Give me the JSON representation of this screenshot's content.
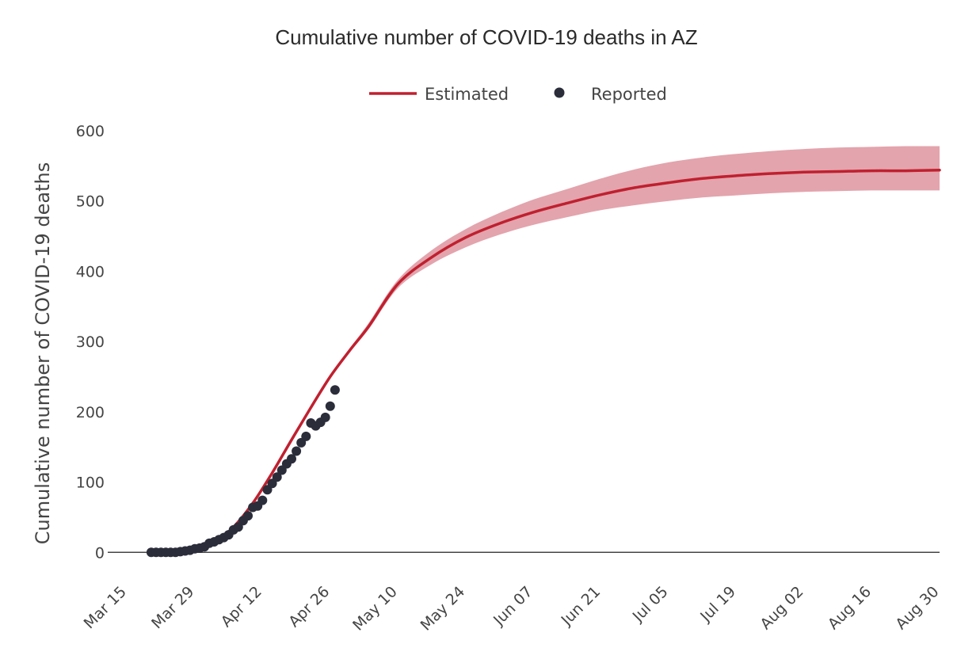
{
  "chart_data": {
    "type": "line",
    "title": "Cumulative number of COVID-19 deaths in AZ",
    "ylabel": "Cumulative number of COVID-19 deaths",
    "xlabel": "",
    "xlim": [
      "2020-03-11",
      "2020-08-30"
    ],
    "ylim": [
      -20,
      600
    ],
    "y_ticks": [
      0,
      100,
      200,
      300,
      400,
      500,
      600
    ],
    "x_ticks": [
      {
        "date": "2020-03-15",
        "label": "Mar 15"
      },
      {
        "date": "2020-03-29",
        "label": "Mar 29"
      },
      {
        "date": "2020-04-12",
        "label": "Apr 12"
      },
      {
        "date": "2020-04-26",
        "label": "Apr 26"
      },
      {
        "date": "2020-05-10",
        "label": "May 10"
      },
      {
        "date": "2020-05-24",
        "label": "May 24"
      },
      {
        "date": "2020-06-07",
        "label": "Jun 07"
      },
      {
        "date": "2020-06-21",
        "label": "Jun 21"
      },
      {
        "date": "2020-07-05",
        "label": "Jul 05"
      },
      {
        "date": "2020-07-19",
        "label": "Jul 19"
      },
      {
        "date": "2020-08-02",
        "label": "Aug 02"
      },
      {
        "date": "2020-08-16",
        "label": "Aug 16"
      },
      {
        "date": "2020-08-30",
        "label": "Aug 30"
      }
    ],
    "grid": false,
    "legend": {
      "placement": "top-center",
      "orientation": "horizontal"
    },
    "series": [
      {
        "name": "Estimated",
        "kind": "line",
        "color": "#c0202f",
        "band_color": "#e3a4ad",
        "points": [
          {
            "date": "2020-03-20",
            "y": 0,
            "lo": 0,
            "hi": 0
          },
          {
            "date": "2020-03-25",
            "y": 1,
            "lo": 1,
            "hi": 1
          },
          {
            "date": "2020-03-29",
            "y": 4,
            "lo": 4,
            "hi": 4
          },
          {
            "date": "2020-04-02",
            "y": 14,
            "lo": 14,
            "hi": 14
          },
          {
            "date": "2020-04-06",
            "y": 36,
            "lo": 36,
            "hi": 36
          },
          {
            "date": "2020-04-10",
            "y": 70,
            "lo": 70,
            "hi": 70
          },
          {
            "date": "2020-04-14",
            "y": 113,
            "lo": 113,
            "hi": 113
          },
          {
            "date": "2020-04-18",
            "y": 160,
            "lo": 160,
            "hi": 160
          },
          {
            "date": "2020-04-22",
            "y": 206,
            "lo": 206,
            "hi": 206
          },
          {
            "date": "2020-04-26",
            "y": 250,
            "lo": 250,
            "hi": 252
          },
          {
            "date": "2020-04-30",
            "y": 287,
            "lo": 285,
            "hi": 290
          },
          {
            "date": "2020-05-04",
            "y": 322,
            "lo": 318,
            "hi": 327
          },
          {
            "date": "2020-05-10",
            "y": 382,
            "lo": 376,
            "hi": 388
          },
          {
            "date": "2020-05-17",
            "y": 420,
            "lo": 410,
            "hi": 430
          },
          {
            "date": "2020-05-24",
            "y": 448,
            "lo": 434,
            "hi": 460
          },
          {
            "date": "2020-05-31",
            "y": 468,
            "lo": 452,
            "hi": 483
          },
          {
            "date": "2020-06-07",
            "y": 484,
            "lo": 466,
            "hi": 502
          },
          {
            "date": "2020-06-14",
            "y": 497,
            "lo": 477,
            "hi": 517
          },
          {
            "date": "2020-06-21",
            "y": 509,
            "lo": 487,
            "hi": 532
          },
          {
            "date": "2020-06-28",
            "y": 519,
            "lo": 494,
            "hi": 545
          },
          {
            "date": "2020-07-05",
            "y": 526,
            "lo": 500,
            "hi": 555
          },
          {
            "date": "2020-07-12",
            "y": 532,
            "lo": 505,
            "hi": 562
          },
          {
            "date": "2020-07-19",
            "y": 536,
            "lo": 508,
            "hi": 567
          },
          {
            "date": "2020-07-26",
            "y": 539,
            "lo": 511,
            "hi": 571
          },
          {
            "date": "2020-08-02",
            "y": 541,
            "lo": 513,
            "hi": 574
          },
          {
            "date": "2020-08-09",
            "y": 542,
            "lo": 514,
            "hi": 576
          },
          {
            "date": "2020-08-16",
            "y": 543,
            "lo": 515,
            "hi": 577
          },
          {
            "date": "2020-08-23",
            "y": 543,
            "lo": 515,
            "hi": 578
          },
          {
            "date": "2020-08-30",
            "y": 544,
            "lo": 515,
            "hi": 578
          }
        ]
      },
      {
        "name": "Reported",
        "kind": "markers",
        "color": "#2b2d3a",
        "points": [
          {
            "date": "2020-03-20",
            "y": 0
          },
          {
            "date": "2020-03-21",
            "y": 0
          },
          {
            "date": "2020-03-22",
            "y": 0
          },
          {
            "date": "2020-03-23",
            "y": 0
          },
          {
            "date": "2020-03-24",
            "y": 0
          },
          {
            "date": "2020-03-25",
            "y": 0
          },
          {
            "date": "2020-03-26",
            "y": 1
          },
          {
            "date": "2020-03-27",
            "y": 2
          },
          {
            "date": "2020-03-28",
            "y": 3
          },
          {
            "date": "2020-03-29",
            "y": 5
          },
          {
            "date": "2020-03-30",
            "y": 6
          },
          {
            "date": "2020-03-31",
            "y": 8
          },
          {
            "date": "2020-04-01",
            "y": 13
          },
          {
            "date": "2020-04-02",
            "y": 15
          },
          {
            "date": "2020-04-03",
            "y": 18
          },
          {
            "date": "2020-04-04",
            "y": 21
          },
          {
            "date": "2020-04-05",
            "y": 25
          },
          {
            "date": "2020-04-06",
            "y": 32
          },
          {
            "date": "2020-04-07",
            "y": 36
          },
          {
            "date": "2020-04-08",
            "y": 45
          },
          {
            "date": "2020-04-09",
            "y": 52
          },
          {
            "date": "2020-04-10",
            "y": 64
          },
          {
            "date": "2020-04-11",
            "y": 66
          },
          {
            "date": "2020-04-12",
            "y": 74
          },
          {
            "date": "2020-04-13",
            "y": 89
          },
          {
            "date": "2020-04-14",
            "y": 98
          },
          {
            "date": "2020-04-15",
            "y": 107
          },
          {
            "date": "2020-04-16",
            "y": 117
          },
          {
            "date": "2020-04-17",
            "y": 126
          },
          {
            "date": "2020-04-18",
            "y": 133
          },
          {
            "date": "2020-04-19",
            "y": 144
          },
          {
            "date": "2020-04-20",
            "y": 156
          },
          {
            "date": "2020-04-21",
            "y": 165
          },
          {
            "date": "2020-04-22",
            "y": 184
          },
          {
            "date": "2020-04-23",
            "y": 180
          },
          {
            "date": "2020-04-24",
            "y": 185
          },
          {
            "date": "2020-04-25",
            "y": 192
          },
          {
            "date": "2020-04-26",
            "y": 208
          },
          {
            "date": "2020-04-27",
            "y": 231
          }
        ]
      }
    ]
  }
}
